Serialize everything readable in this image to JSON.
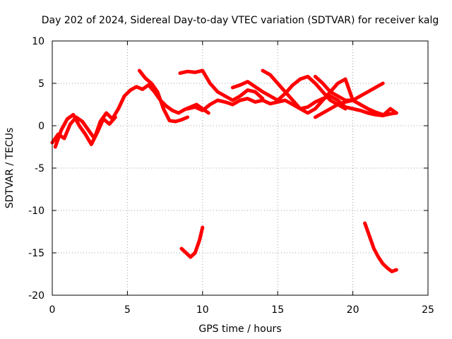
{
  "chart_data": {
    "type": "line",
    "title": "Day 202 of 2024, Sidereal Day-to-day VTEC variation (SDTVAR) for receiver kalg",
    "xlabel": "GPS time / hours",
    "ylabel": "SDTVAR / TECUs",
    "xlim": [
      0,
      25
    ],
    "ylim": [
      -20,
      10
    ],
    "xticks": [
      "0",
      "5",
      "10",
      "15",
      "20",
      "25"
    ],
    "yticks": [
      "10",
      "5",
      "0",
      "-5",
      "-10",
      "-15",
      "-20"
    ],
    "grid": true,
    "color": "#ff0000",
    "series": [
      {
        "name": "trace-1",
        "x": [
          0,
          0.4,
          0.8,
          1.2,
          1.6,
          2.0,
          2.4,
          2.8,
          3.2,
          3.6,
          4.0,
          4.4,
          4.8,
          5.2,
          5.6,
          6.0,
          6.4,
          6.8,
          7.2,
          7.6,
          8.0,
          8.4,
          8.8,
          9.2,
          9.6,
          10.0,
          10.4
        ],
        "y": [
          -2.0,
          -1.0,
          -1.5,
          0.2,
          1.0,
          0.5,
          -0.5,
          -1.5,
          0.5,
          1.5,
          0.8,
          2.0,
          3.5,
          4.2,
          4.6,
          4.3,
          4.8,
          4.0,
          3.0,
          2.3,
          1.8,
          1.5,
          1.9,
          2.2,
          2.5,
          2.0,
          1.5
        ]
      },
      {
        "name": "trace-2",
        "x": [
          0.2,
          0.6,
          1.0,
          1.4,
          1.8,
          2.2,
          2.6,
          3.0,
          3.4,
          3.8,
          4.2
        ],
        "y": [
          -2.5,
          -0.5,
          0.8,
          1.3,
          0.0,
          -1.0,
          -2.2,
          -0.8,
          0.8,
          0.2,
          1.0
        ]
      },
      {
        "name": "trace-3",
        "x": [
          5.8,
          6.2,
          6.6,
          7.0,
          7.4,
          7.8,
          8.2,
          8.6,
          9.0
        ],
        "y": [
          6.5,
          5.6,
          5.0,
          4.0,
          2.0,
          0.6,
          0.5,
          0.7,
          1.0
        ]
      },
      {
        "name": "trace-4",
        "x": [
          8.5,
          9.0,
          9.5,
          10.0,
          10.5,
          11.0,
          11.5,
          12.0,
          12.5,
          13.0,
          13.5,
          14.0
        ],
        "y": [
          6.2,
          6.4,
          6.3,
          6.5,
          5.0,
          4.0,
          3.5,
          3.0,
          3.5,
          4.2,
          4.0,
          3.2
        ]
      },
      {
        "name": "trace-5",
        "x": [
          9.0,
          9.5,
          10.0,
          10.5,
          11.0,
          11.5,
          12.0,
          12.5,
          13.0,
          13.5,
          14.0,
          14.5,
          15.0,
          15.5,
          16.0,
          16.5,
          17.0,
          17.5,
          18.0,
          18.5,
          19.0,
          19.5,
          20.0,
          20.5,
          21.0,
          21.5,
          22.0,
          22.5,
          22.9
        ],
        "y": [
          2.0,
          2.2,
          1.8,
          2.5,
          3.0,
          2.8,
          2.5,
          3.0,
          3.2,
          2.8,
          3.0,
          2.6,
          2.8,
          3.0,
          2.5,
          2.0,
          2.2,
          2.8,
          3.2,
          3.5,
          3.0,
          2.2,
          2.0,
          1.8,
          1.5,
          1.3,
          1.2,
          1.4,
          1.5
        ]
      },
      {
        "name": "trace-6",
        "x": [
          12.0,
          12.5,
          13.0,
          13.5,
          14.0,
          14.5,
          15.0,
          15.5,
          16.0,
          16.5,
          17.0,
          17.5,
          18.0,
          18.5,
          19.0,
          19.5
        ],
        "y": [
          4.5,
          4.8,
          5.2,
          4.6,
          4.0,
          3.5,
          3.0,
          3.8,
          4.8,
          5.5,
          5.8,
          5.0,
          4.0,
          3.0,
          2.5,
          2.0
        ]
      },
      {
        "name": "trace-7",
        "x": [
          14.0,
          14.5,
          15.0,
          15.5,
          16.0,
          16.5,
          17.0,
          17.5,
          18.0,
          18.5,
          19.0,
          19.5,
          20.0,
          20.5,
          21.0,
          21.5,
          22.0
        ],
        "y": [
          6.5,
          6.0,
          5.0,
          4.0,
          3.0,
          2.0,
          1.5,
          2.0,
          3.0,
          4.0,
          5.0,
          5.5,
          3.0,
          2.5,
          2.0,
          1.6,
          1.3
        ]
      },
      {
        "name": "trace-8",
        "x": [
          17.5,
          18.0,
          18.5,
          19.0,
          19.5,
          20.0,
          20.5,
          21.0,
          21.5,
          22.0
        ],
        "y": [
          1.0,
          1.5,
          2.0,
          2.5,
          2.8,
          3.0,
          3.5,
          4.0,
          4.5,
          5.0
        ]
      },
      {
        "name": "trace-9",
        "x": [
          17.5,
          18.0,
          18.5,
          19.0,
          19.5,
          20.0,
          20.5,
          21.0,
          21.5,
          22.0,
          22.5,
          22.9
        ],
        "y": [
          5.8,
          5.0,
          4.0,
          3.5,
          3.0,
          3.0,
          2.5,
          2.0,
          1.5,
          1.2,
          2.0,
          1.5
        ]
      },
      {
        "name": "trace-10",
        "x": [
          8.6,
          8.9,
          9.2,
          9.5,
          9.8,
          10.0
        ],
        "y": [
          -14.5,
          -15.0,
          -15.5,
          -15.0,
          -13.5,
          -12.0
        ]
      },
      {
        "name": "trace-11",
        "x": [
          20.8,
          21.1,
          21.4,
          21.7,
          22.0,
          22.3,
          22.6,
          22.9
        ],
        "y": [
          -11.5,
          -13.0,
          -14.5,
          -15.5,
          -16.3,
          -16.8,
          -17.2,
          -17.0
        ]
      }
    ]
  }
}
